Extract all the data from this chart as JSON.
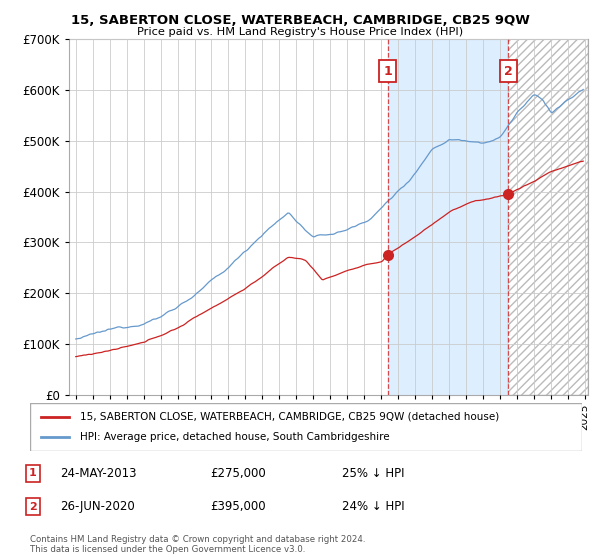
{
  "title": "15, SABERTON CLOSE, WATERBEACH, CAMBRIDGE, CB25 9QW",
  "subtitle": "Price paid vs. HM Land Registry's House Price Index (HPI)",
  "line1_label": "15, SABERTON CLOSE, WATERBEACH, CAMBRIDGE, CB25 9QW (detached house)",
  "line2_label": "HPI: Average price, detached house, South Cambridgeshire",
  "line1_color": "#cc2222",
  "line2_color": "#6699cc",
  "sale1_date_x": 2013.38,
  "sale1_price": 275000,
  "sale2_date_x": 2020.5,
  "sale2_price": 395000,
  "annotation1_date": "24-MAY-2013",
  "annotation1_price": "£275,000",
  "annotation1_pct": "25% ↓ HPI",
  "annotation2_date": "26-JUN-2020",
  "annotation2_price": "£395,000",
  "annotation2_pct": "24% ↓ HPI",
  "ylim": [
    0,
    700000
  ],
  "yticks": [
    0,
    100000,
    200000,
    300000,
    400000,
    500000,
    600000,
    700000
  ],
  "xlim_start": 1994.6,
  "xlim_end": 2025.2,
  "shade_color": "#ddeeff",
  "hatch_color": "#cccccc",
  "copyright_text": "Contains HM Land Registry data © Crown copyright and database right 2024.\nThis data is licensed under the Open Government Licence v3.0.",
  "background_color": "#ffffff",
  "grid_color": "#cccccc"
}
